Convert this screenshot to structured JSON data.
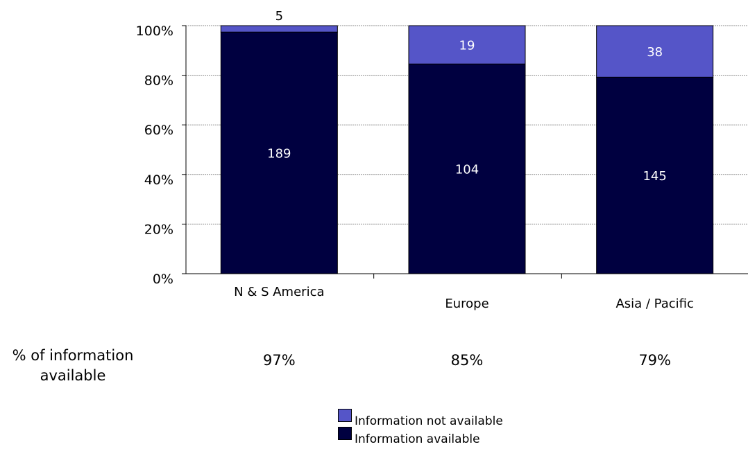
{
  "chart_data": {
    "type": "bar",
    "stacked": "percent",
    "categories": [
      "N & S America",
      "Europe",
      "Asia / Pacific"
    ],
    "series": [
      {
        "name": "Information available",
        "values": [
          189,
          104,
          145
        ],
        "color": "#000040"
      },
      {
        "name": "Information not available",
        "values": [
          5,
          19,
          38
        ],
        "color": "#5555c8"
      }
    ],
    "ylim": [
      0,
      100
    ],
    "yticks": [
      "0%",
      "20%",
      "40%",
      "60%",
      "80%",
      "100%"
    ],
    "grid": true,
    "legend_position": "bottom"
  },
  "summary_row": {
    "label": "% of information available",
    "values": [
      "97%",
      "85%",
      "79%"
    ]
  },
  "legend": {
    "items": [
      "Information not available",
      "Information available"
    ]
  }
}
